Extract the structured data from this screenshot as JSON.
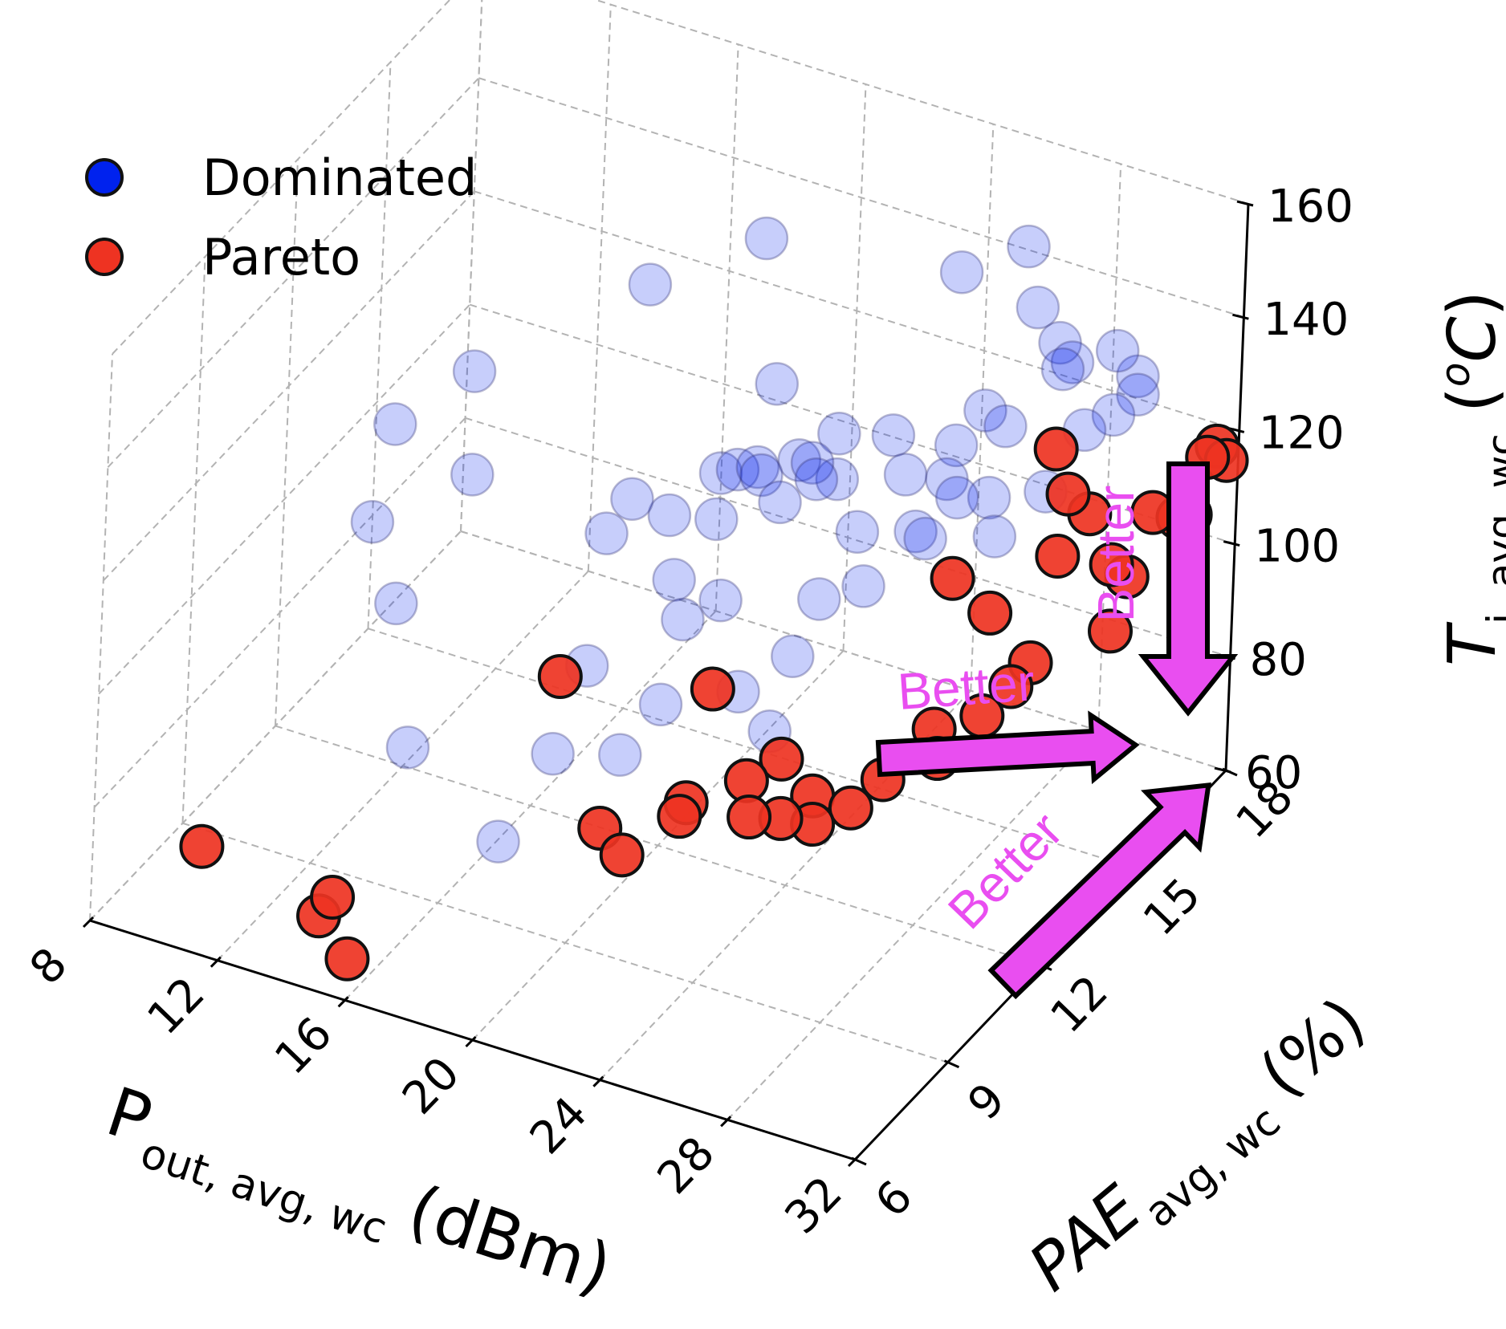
{
  "chart_data": {
    "type": "scatter",
    "projection": "3d",
    "grid": true,
    "legend_position": "top-left",
    "x_axis": {
      "label_main": "P",
      "label_sub": "out, avg, wc",
      "label_unit": "(dBm)",
      "range": [
        8,
        32
      ],
      "ticks": [
        "8",
        "12",
        "16",
        "20",
        "24",
        "28",
        "32"
      ]
    },
    "y_axis": {
      "label_main": "PAE",
      "label_sub": "avg, wc",
      "label_unit": "(%)",
      "range": [
        6,
        18
      ],
      "ticks": [
        "6",
        "9",
        "12",
        "15",
        "18"
      ]
    },
    "z_axis": {
      "label_main": "T",
      "label_sub": "j, avg, wc",
      "label_unit_open": "(",
      "label_unit_sup": "o",
      "label_unit_main": "C",
      "label_unit_close": ")",
      "range": [
        60,
        160
      ],
      "ticks": [
        "60",
        "80",
        "100",
        "120",
        "140",
        "160"
      ]
    },
    "series": [
      {
        "name": "Dominated",
        "color": "#0022ee",
        "points": [
          [
            10.7,
            12.7,
            114
          ],
          [
            11.4,
            11.3,
            106
          ],
          [
            12.6,
            13.3,
            105
          ],
          [
            11.9,
            14.0,
            118
          ],
          [
            12.6,
            10.9,
            96
          ],
          [
            15.4,
            16.0,
            128
          ],
          [
            17.4,
            12.2,
            86
          ],
          [
            18.1,
            10.4,
            82
          ],
          [
            14.7,
            9.2,
            84
          ],
          [
            17.8,
            9.0,
            74
          ],
          [
            18.4,
            16.6,
            138
          ],
          [
            20.0,
            15.4,
            122
          ],
          [
            18.3,
            13.8,
            105
          ],
          [
            17.4,
            13.5,
            108
          ],
          [
            17.2,
            12.9,
            105
          ],
          [
            20.4,
            13.1,
            112
          ],
          [
            19.2,
            14.5,
            110
          ],
          [
            19.9,
            12.3,
            105
          ],
          [
            19.9,
            14.3,
            113
          ],
          [
            21.9,
            15.5,
            116
          ],
          [
            20.4,
            12.1,
            100
          ],
          [
            20.7,
            14.1,
            116
          ],
          [
            20.0,
            10.6,
            84
          ],
          [
            21.0,
            12.7,
            101
          ],
          [
            21.2,
            10.6,
            95
          ],
          [
            22.9,
            14.4,
            116
          ],
          [
            21.8,
            13.7,
            114
          ],
          [
            24.6,
            13.3,
            116
          ],
          [
            21.1,
            13.8,
            117
          ],
          [
            22.3,
            14.2,
            119
          ],
          [
            21.8,
            14.3,
            118
          ],
          [
            22.9,
            13.7,
            120
          ],
          [
            24.7,
            10.5,
            97
          ],
          [
            24.4,
            16.7,
            142
          ],
          [
            26.5,
            13.2,
            120
          ],
          [
            25.2,
            14.2,
            122
          ],
          [
            23.4,
            10.8,
            100
          ],
          [
            24.4,
            11.5,
            104
          ],
          [
            24.6,
            12.1,
            111
          ],
          [
            26.0,
            15.0,
            124
          ],
          [
            25.5,
            12.6,
            112
          ],
          [
            24.5,
            14.5,
            126
          ],
          [
            26.4,
            15.5,
            128
          ],
          [
            26.3,
            14.4,
            122
          ],
          [
            26.8,
            16.7,
            140
          ],
          [
            28.4,
            16.2,
            136
          ],
          [
            27.9,
            16.3,
            138
          ],
          [
            26.9,
            13.1,
            120
          ],
          [
            27.5,
            15.0,
            130
          ],
          [
            25.8,
            17.4,
            145
          ],
          [
            29.1,
            14.7,
            123
          ],
          [
            29.8,
            16.9,
            132
          ],
          [
            28.2,
            16.1,
            135
          ],
          [
            30.1,
            16.6,
            131
          ],
          [
            28.0,
            14.0,
            124
          ],
          [
            27.1,
            13.9,
            123
          ],
          [
            30.1,
            15.8,
            132
          ],
          [
            28.4,
            13.8,
            119
          ],
          [
            29.6,
            16.4,
            139
          ],
          [
            29.5,
            15.5,
            130
          ]
        ]
      },
      {
        "name": "Pareto",
        "color": "#ee3322",
        "points": [
          [
            10.0,
            7.5,
            68
          ],
          [
            13.8,
            7.4,
            63
          ],
          [
            14.2,
            7.4,
            67
          ],
          [
            15.1,
            7.0,
            60
          ],
          [
            17.5,
            11.2,
            90
          ],
          [
            21.6,
            11.9,
            91
          ],
          [
            20.2,
            9.8,
            76
          ],
          [
            21.1,
            9.6,
            74
          ],
          [
            22.1,
            10.4,
            78
          ],
          [
            22.2,
            10.5,
            80
          ],
          [
            23.4,
            11.2,
            82
          ],
          [
            24.0,
            11.7,
            84
          ],
          [
            23.8,
            10.9,
            78
          ],
          [
            24.6,
            11.1,
            78
          ],
          [
            25.1,
            11.6,
            80
          ],
          [
            25.5,
            11.2,
            78
          ],
          [
            26.3,
            11.6,
            80
          ],
          [
            26.8,
            12.1,
            83
          ],
          [
            26.6,
            14.4,
            105
          ],
          [
            27.5,
            13.0,
            88
          ],
          [
            28.0,
            12.6,
            86
          ],
          [
            28.6,
            13.4,
            90
          ],
          [
            29.0,
            13.9,
            93
          ],
          [
            29.3,
            14.2,
            96
          ],
          [
            28.0,
            16.2,
            120
          ],
          [
            27.8,
            14.4,
            101
          ],
          [
            28.7,
            15.9,
            115
          ],
          [
            29.3,
            16.0,
            112
          ],
          [
            29.0,
            15.3,
            108
          ],
          [
            30.5,
            15.5,
            108
          ],
          [
            30.9,
            15.6,
            106
          ],
          [
            31.0,
            15.0,
            100
          ],
          [
            30.8,
            16.5,
            112
          ],
          [
            31.4,
            16.7,
            111
          ],
          [
            31.6,
            17.4,
            118
          ],
          [
            31.7,
            17.6,
            119
          ],
          [
            32.0,
            17.6,
            117
          ],
          [
            31.5,
            17.0,
            110
          ]
        ]
      }
    ],
    "annotations": [
      "Better",
      "Better",
      "Better"
    ]
  }
}
